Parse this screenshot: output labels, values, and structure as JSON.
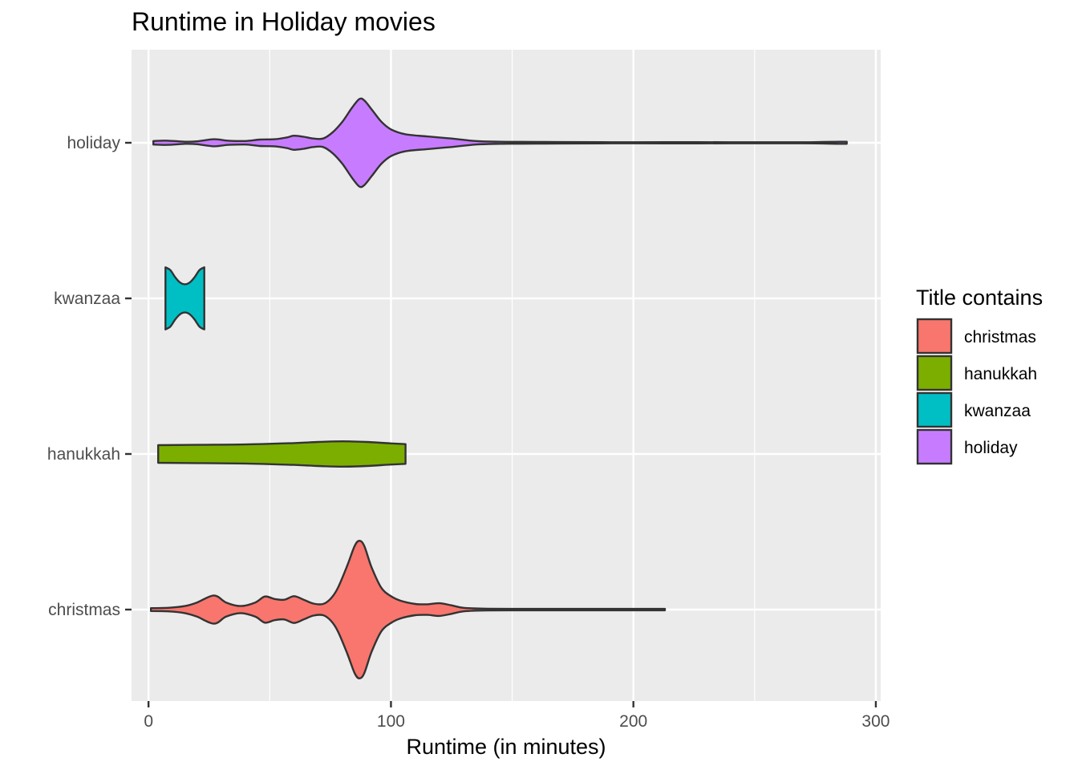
{
  "chart_data": {
    "type": "violin",
    "title": "Runtime in Holiday movies",
    "xlabel": "Runtime (in minutes)",
    "ylabel": "",
    "xlim": [
      -7,
      302
    ],
    "x_ticks": [
      0,
      100,
      200,
      300
    ],
    "x_tick_labels": [
      "0",
      "100",
      "200",
      "300"
    ],
    "grid": true,
    "orientation": "horizontal",
    "legend_position": "right",
    "legend": {
      "title": "Title contains",
      "entries": [
        "christmas",
        "hanukkah",
        "kwanzaa",
        "holiday"
      ]
    },
    "categories": [
      "christmas",
      "hanukkah",
      "kwanzaa",
      "holiday"
    ],
    "series": [
      {
        "name": "christmas",
        "color": "#F8766D",
        "range": [
          1,
          213
        ],
        "profile": [
          [
            1,
            0.04
          ],
          [
            8,
            0.05
          ],
          [
            15,
            0.1
          ],
          [
            20,
            0.2
          ],
          [
            27,
            0.4
          ],
          [
            32,
            0.2
          ],
          [
            38,
            0.1
          ],
          [
            44,
            0.2
          ],
          [
            48,
            0.37
          ],
          [
            52,
            0.3
          ],
          [
            56,
            0.28
          ],
          [
            60,
            0.38
          ],
          [
            64,
            0.28
          ],
          [
            68,
            0.17
          ],
          [
            72,
            0.16
          ],
          [
            75,
            0.3
          ],
          [
            78,
            0.6
          ],
          [
            82,
            1.25
          ],
          [
            85,
            1.8
          ],
          [
            87,
            1.95
          ],
          [
            89,
            1.8
          ],
          [
            92,
            1.2
          ],
          [
            96,
            0.62
          ],
          [
            100,
            0.38
          ],
          [
            104,
            0.25
          ],
          [
            110,
            0.16
          ],
          [
            115,
            0.15
          ],
          [
            120,
            0.18
          ],
          [
            125,
            0.12
          ],
          [
            130,
            0.05
          ],
          [
            140,
            0.025
          ],
          [
            160,
            0.02
          ],
          [
            180,
            0.02
          ],
          [
            200,
            0.02
          ],
          [
            213,
            0.02
          ]
        ]
      },
      {
        "name": "hanukkah",
        "color": "#7CAE00",
        "range": [
          4,
          106
        ],
        "profile": [
          [
            4,
            0.25
          ],
          [
            20,
            0.26
          ],
          [
            40,
            0.27
          ],
          [
            60,
            0.31
          ],
          [
            70,
            0.34
          ],
          [
            80,
            0.36
          ],
          [
            90,
            0.34
          ],
          [
            100,
            0.3
          ],
          [
            106,
            0.28
          ]
        ]
      },
      {
        "name": "kwanzaa",
        "color": "#00BFC4",
        "range": [
          7,
          23
        ],
        "profile": [
          [
            7,
            0.88
          ],
          [
            9,
            0.8
          ],
          [
            11,
            0.6
          ],
          [
            13,
            0.45
          ],
          [
            15,
            0.4
          ],
          [
            17,
            0.45
          ],
          [
            19,
            0.6
          ],
          [
            21,
            0.8
          ],
          [
            23,
            0.88
          ]
        ]
      },
      {
        "name": "holiday",
        "color": "#C77CFF",
        "range": [
          2,
          288
        ],
        "profile": [
          [
            2,
            0.05
          ],
          [
            8,
            0.06
          ],
          [
            15,
            0.03
          ],
          [
            20,
            0.04
          ],
          [
            27,
            0.1
          ],
          [
            33,
            0.06
          ],
          [
            40,
            0.05
          ],
          [
            46,
            0.09
          ],
          [
            52,
            0.1
          ],
          [
            57,
            0.15
          ],
          [
            60,
            0.2
          ],
          [
            64,
            0.17
          ],
          [
            68,
            0.12
          ],
          [
            72,
            0.12
          ],
          [
            76,
            0.3
          ],
          [
            80,
            0.6
          ],
          [
            84,
            1.0
          ],
          [
            87,
            1.24
          ],
          [
            89,
            1.2
          ],
          [
            92,
            0.95
          ],
          [
            96,
            0.6
          ],
          [
            100,
            0.38
          ],
          [
            106,
            0.24
          ],
          [
            115,
            0.18
          ],
          [
            125,
            0.12
          ],
          [
            135,
            0.05
          ],
          [
            145,
            0.03
          ],
          [
            160,
            0.025
          ],
          [
            170,
            0.02
          ],
          [
            200,
            0.015
          ],
          [
            220,
            0.018
          ],
          [
            240,
            0.015
          ],
          [
            270,
            0.015
          ],
          [
            285,
            0.03
          ],
          [
            288,
            0.03
          ]
        ]
      }
    ]
  }
}
